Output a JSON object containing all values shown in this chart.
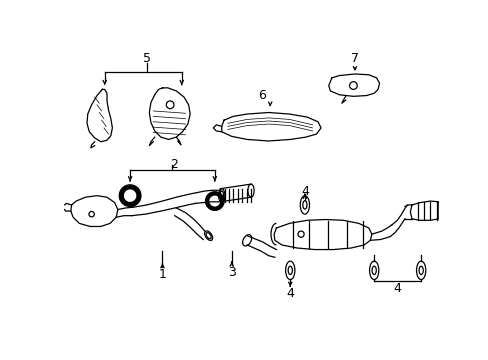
{
  "background_color": "#ffffff",
  "line_color": "#000000",
  "label_fontsize": 8.5,
  "figsize": [
    4.89,
    3.6
  ],
  "dpi": 100
}
